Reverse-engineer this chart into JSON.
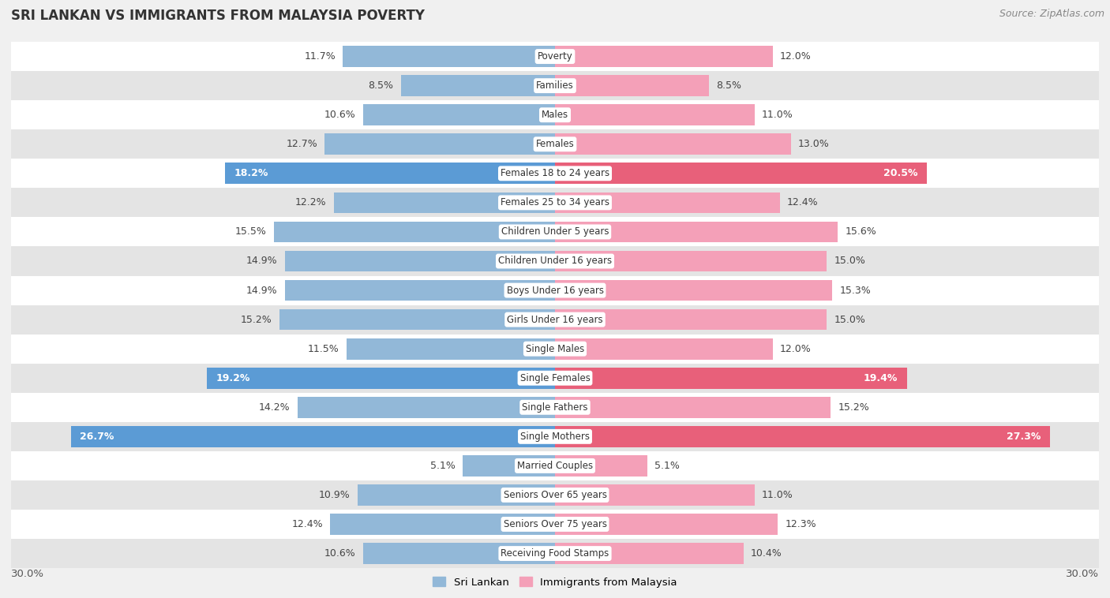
{
  "title": "SRI LANKAN VS IMMIGRANTS FROM MALAYSIA POVERTY",
  "source": "Source: ZipAtlas.com",
  "categories": [
    "Poverty",
    "Families",
    "Males",
    "Females",
    "Females 18 to 24 years",
    "Females 25 to 34 years",
    "Children Under 5 years",
    "Children Under 16 years",
    "Boys Under 16 years",
    "Girls Under 16 years",
    "Single Males",
    "Single Females",
    "Single Fathers",
    "Single Mothers",
    "Married Couples",
    "Seniors Over 65 years",
    "Seniors Over 75 years",
    "Receiving Food Stamps"
  ],
  "sri_lankan": [
    11.7,
    8.5,
    10.6,
    12.7,
    18.2,
    12.2,
    15.5,
    14.9,
    14.9,
    15.2,
    11.5,
    19.2,
    14.2,
    26.7,
    5.1,
    10.9,
    12.4,
    10.6
  ],
  "immigrants": [
    12.0,
    8.5,
    11.0,
    13.0,
    20.5,
    12.4,
    15.6,
    15.0,
    15.3,
    15.0,
    12.0,
    19.4,
    15.2,
    27.3,
    5.1,
    11.0,
    12.3,
    10.4
  ],
  "sri_lankan_color_normal": "#92b8d8",
  "immigrants_color_normal": "#f4a0b8",
  "sri_lankan_color_highlight": "#5b9bd5",
  "immigrants_color_highlight": "#e8607a",
  "highlight_rows": [
    4,
    11,
    13
  ],
  "background_color": "#f0f0f0",
  "row_color_even": "#ffffff",
  "row_color_odd": "#e4e4e4",
  "bar_height": 0.72,
  "xlim": 30.0,
  "legend_sri_lankan": "Sri Lankan",
  "legend_immigrants": "Immigrants from Malaysia"
}
